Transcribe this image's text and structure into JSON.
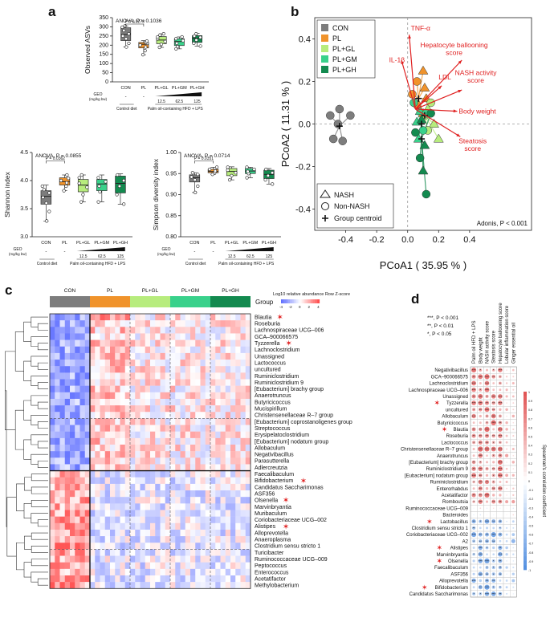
{
  "colors": {
    "CON": "#7d7d7d",
    "PL": "#f0932b",
    "PL+GL": "#b7ec7d",
    "PL+GM": "#39d18b",
    "PL+GH": "#138a4f",
    "red": "#e02020"
  },
  "panel_letters": {
    "a": "a",
    "b": "b",
    "c": "c",
    "d": "d"
  },
  "chart_data": [
    {
      "id": "observed-asvs",
      "type": "box",
      "title": "ANOVA, P = 0.1036",
      "ylabel": "Observed ASVs",
      "ylim": [
        0,
        350
      ],
      "yticks": [
        0,
        50,
        100,
        150,
        200,
        250,
        300,
        350
      ],
      "categories": [
        "CON",
        "PL",
        "PL+GL",
        "PL+GM",
        "PL+GH"
      ],
      "boxes": [
        {
          "min": 190,
          "q1": 225,
          "median": 258,
          "q3": 295,
          "max": 305,
          "points": [
            190,
            210,
            235,
            250,
            262,
            280,
            298,
            305
          ]
        },
        {
          "min": 148,
          "q1": 185,
          "median": 205,
          "q3": 215,
          "max": 225,
          "points": [
            148,
            170,
            190,
            200,
            210,
            215,
            222
          ]
        },
        {
          "min": 188,
          "q1": 208,
          "median": 228,
          "q3": 247,
          "max": 262,
          "points": [
            188,
            205,
            220,
            235,
            245,
            255,
            262
          ]
        },
        {
          "min": 180,
          "q1": 198,
          "median": 220,
          "q3": 235,
          "max": 245,
          "points": [
            180,
            192,
            210,
            225,
            235,
            245
          ]
        },
        {
          "min": 195,
          "q1": 215,
          "median": 238,
          "q3": 252,
          "max": 265,
          "points": [
            195,
            210,
            228,
            242,
            250,
            262
          ]
        }
      ],
      "annotation": {
        "label": "P = 0.0273",
        "from": "CON",
        "to": "PL"
      }
    },
    {
      "id": "shannon-index",
      "type": "box",
      "title": "ANOVA, P = 0.0855",
      "ylabel": "Shannon index",
      "ylim": [
        3.0,
        4.5
      ],
      "yticks": [
        3.0,
        3.5,
        4.0,
        4.5
      ],
      "categories": [
        "CON",
        "PL",
        "PL+GL",
        "PL+GM",
        "PL+GH"
      ],
      "boxes": [
        {
          "min": 3.28,
          "q1": 3.58,
          "median": 3.72,
          "q3": 3.82,
          "max": 3.92,
          "points": [
            3.28,
            3.45,
            3.6,
            3.7,
            3.78,
            3.84,
            3.9
          ]
        },
        {
          "min": 3.82,
          "q1": 3.92,
          "median": 3.98,
          "q3": 4.05,
          "max": 4.1,
          "points": [
            3.82,
            3.9,
            3.96,
            4.0,
            4.04,
            4.1
          ]
        },
        {
          "min": 3.62,
          "q1": 3.8,
          "median": 3.92,
          "q3": 4.02,
          "max": 4.1,
          "points": [
            3.62,
            3.75,
            3.88,
            3.95,
            4.05,
            4.1
          ]
        },
        {
          "min": 3.62,
          "q1": 3.82,
          "median": 3.94,
          "q3": 4.02,
          "max": 4.1,
          "points": [
            3.62,
            3.8,
            3.9,
            3.98,
            4.05
          ]
        },
        {
          "min": 3.58,
          "q1": 3.78,
          "median": 3.95,
          "q3": 4.08,
          "max": 4.12,
          "points": [
            3.58,
            3.75,
            3.9,
            4.0,
            4.1
          ]
        }
      ],
      "annotation": {
        "label": "P = 0.0362",
        "from": "CON",
        "to": "PL"
      }
    },
    {
      "id": "simpson-index",
      "type": "box",
      "title": "ANOVA, P = 0.0714",
      "ylabel": "Simpson diversity index",
      "ylim": [
        0.8,
        1.0
      ],
      "yticks": [
        0.8,
        0.85,
        0.9,
        0.95,
        1.0
      ],
      "categories": [
        "CON",
        "PL",
        "PL+GL",
        "PL+GM",
        "PL+GH"
      ],
      "boxes": [
        {
          "min": 0.905,
          "q1": 0.93,
          "median": 0.94,
          "q3": 0.947,
          "max": 0.952,
          "points": [
            0.905,
            0.92,
            0.935,
            0.942,
            0.948,
            0.952
          ]
        },
        {
          "min": 0.948,
          "q1": 0.952,
          "median": 0.955,
          "q3": 0.96,
          "max": 0.965,
          "points": [
            0.948,
            0.952,
            0.956,
            0.96,
            0.965
          ]
        },
        {
          "min": 0.935,
          "q1": 0.945,
          "median": 0.955,
          "q3": 0.962,
          "max": 0.966,
          "points": [
            0.935,
            0.945,
            0.952,
            0.958,
            0.965
          ]
        },
        {
          "min": 0.94,
          "q1": 0.95,
          "median": 0.956,
          "q3": 0.962,
          "max": 0.965,
          "points": [
            0.94,
            0.95,
            0.955,
            0.96,
            0.965
          ]
        },
        {
          "min": 0.925,
          "q1": 0.938,
          "median": 0.948,
          "q3": 0.958,
          "max": 0.962,
          "points": [
            0.925,
            0.935,
            0.945,
            0.952,
            0.96
          ]
        }
      ],
      "annotation": {
        "label": "P = 0.0351",
        "from": "CON",
        "to": "PL"
      }
    },
    {
      "id": "pcoa",
      "type": "scatter",
      "xlabel": "PCoA1 ( 35.95 % )",
      "ylabel": "PCoA2 ( 11.31 % )",
      "xlim": [
        -0.6,
        0.8
      ],
      "ylim": [
        -0.5,
        0.5
      ],
      "xticks": [
        -0.4,
        -0.2,
        0.0,
        0.2,
        0.4
      ],
      "yticks": [
        -0.4,
        -0.2,
        0.0,
        0.2,
        0.4
      ],
      "legend": [
        "CON",
        "PL",
        "PL+GL",
        "PL+GM",
        "PL+GH"
      ],
      "shape_legend": [
        "NASH",
        "Non-NASH",
        "Group centroid"
      ],
      "stat": "Adonis, P < 0.001",
      "centroids": [
        {
          "group": "CON",
          "x": -0.44,
          "y": -0.01
        },
        {
          "group": "PL",
          "x": 0.07,
          "y": 0.12
        },
        {
          "group": "PL+GL",
          "x": 0.11,
          "y": 0.04
        },
        {
          "group": "PL+GM",
          "x": 0.09,
          "y": 0.0
        },
        {
          "group": "PL+GH",
          "x": 0.09,
          "y": -0.07
        }
      ],
      "points": [
        {
          "group": "CON",
          "x": -0.44,
          "y": 0.07
        },
        {
          "group": "CON",
          "x": -0.5,
          "y": 0.04
        },
        {
          "group": "CON",
          "x": -0.45,
          "y": 0.0
        },
        {
          "group": "CON",
          "x": -0.48,
          "y": -0.07
        },
        {
          "group": "CON",
          "x": -0.42,
          "y": -0.08
        },
        {
          "group": "CON",
          "x": -0.37,
          "y": 0.04
        },
        {
          "group": "PL",
          "x": 0.1,
          "y": 0.25
        },
        {
          "group": "PL",
          "x": 0.06,
          "y": 0.2
        },
        {
          "group": "PL",
          "x": 0.11,
          "y": 0.17
        },
        {
          "group": "PL",
          "x": 0.03,
          "y": 0.14
        },
        {
          "group": "PL",
          "x": 0.12,
          "y": 0.12
        },
        {
          "group": "PL",
          "x": 0.06,
          "y": 0.09
        },
        {
          "group": "PL",
          "x": 0.1,
          "y": 0.05
        },
        {
          "group": "PL+GL",
          "x": 0.15,
          "y": 0.1
        },
        {
          "group": "PL+GL",
          "x": 0.13,
          "y": 0.07
        },
        {
          "group": "PL+GL",
          "x": 0.11,
          "y": 0.04
        },
        {
          "group": "PL+GL",
          "x": 0.17,
          "y": 0.0
        },
        {
          "group": "PL+GL",
          "x": 0.13,
          "y": -0.03
        },
        {
          "group": "PL+GL",
          "x": 0.2,
          "y": -0.07
        },
        {
          "group": "PL+GM",
          "x": 0.04,
          "y": 0.1
        },
        {
          "group": "PL+GM",
          "x": 0.08,
          "y": 0.06
        },
        {
          "group": "PL+GM",
          "x": 0.12,
          "y": 0.05
        },
        {
          "group": "PL+GM",
          "x": 0.06,
          "y": 0.01
        },
        {
          "group": "PL+GM",
          "x": 0.1,
          "y": -0.03
        },
        {
          "group": "PL+GM",
          "x": 0.07,
          "y": -0.07
        },
        {
          "group": "PL+GH",
          "x": 0.15,
          "y": 0.05
        },
        {
          "group": "PL+GH",
          "x": 0.09,
          "y": 0.02
        },
        {
          "group": "PL+GH",
          "x": 0.05,
          "y": -0.04
        },
        {
          "group": "PL+GH",
          "x": 0.11,
          "y": -0.1
        },
        {
          "group": "PL+GH",
          "x": 0.08,
          "y": -0.16
        },
        {
          "group": "PL+GH",
          "x": 0.1,
          "y": -0.22
        },
        {
          "group": "PL+GH",
          "x": 0.12,
          "y": -0.33
        }
      ],
      "vectors": [
        {
          "label": "TNF-α",
          "x": 0.01,
          "y": 0.42
        },
        {
          "label": "IL-1β",
          "x": -0.04,
          "y": 0.3
        },
        {
          "label": "Hepatocyte ballooning score",
          "x": 0.35,
          "y": 0.3
        },
        {
          "label": "LDL",
          "x": 0.22,
          "y": 0.18
        },
        {
          "label": "NASH activity score",
          "x": 0.35,
          "y": 0.16
        },
        {
          "label": "Body weight",
          "x": 0.32,
          "y": 0.06
        },
        {
          "label": "Steatosis score",
          "x": 0.34,
          "y": -0.06
        }
      ]
    },
    {
      "id": "heatmap",
      "type": "heatmap",
      "groups": [
        "CON",
        "PL",
        "PL+GL",
        "PL+GM",
        "PL+GH"
      ],
      "legend_title": "Log10 relative abundance Row Z-score",
      "scale": [
        -4,
        -2,
        0,
        2,
        4
      ],
      "rows": [
        "Blautia",
        "Roseburia",
        "Lachnospiraceae UCG–006",
        "GCA–900066575",
        "Tyzzerella",
        "Lachnoclostridium",
        "Unassigned",
        "Lactococcus",
        "uncultured",
        "Ruminiclostridium",
        "Ruminiclostridium 9",
        "[Eubacterium] brachy group",
        "Anaerotruncus",
        "Butyricicoccus",
        "Mucispirillum",
        "Christensenellaceae R–7 group",
        "[Eubacterium] coprostanoligenes group",
        "Streptococcus",
        "Erysipelatoclostridium",
        "[Eubacterium] nodatum group",
        "Allobaculum",
        "Negativibacillus",
        "Parasutterella",
        "Adlercreutzia",
        "Faecalibaculum",
        "Bifidobacterium",
        "Candidatus Saccharimonas",
        "ASF356",
        "Olsenella",
        "Marvinbryantia",
        "Muribaculum",
        "Coriobacteriaceae UCG–002",
        "Alistipes",
        "Alloprevotella",
        "Anaeroplasma",
        "Clostridium sensu stricto 1",
        "Turicibacter",
        "Ruminococcaceae UCG–009",
        "Peptococcus",
        "Enterococcus",
        "Acetatifactor",
        "Methylobacterium"
      ],
      "starred": [
        "Blautia",
        "Tyzzerella",
        "Bifidobacterium",
        "Olsenella",
        "Alistipes"
      ]
    },
    {
      "id": "correlation",
      "type": "heatmap",
      "columns": [
        "Palm oil HFD + LPS",
        "Body weight",
        "NASH activity score",
        "Steatosis score",
        "Hepatocyte ballooning score",
        "Lobular inflammation score",
        "Ginger essential oil"
      ],
      "rows": [
        "Negativibacillus",
        "GCA–900066575",
        "Lachnoclostridium",
        "Lachnospiraceae UCG–006",
        "Unassigned",
        "Tyzzerella",
        "uncultured",
        "Allobaculum",
        "Butyricicoccus",
        "Blautia",
        "Roseburia",
        "Lactococcus",
        "Christensenellaceae R–7 group",
        "Anaerotruncus",
        "[Eubacterium] brachy group",
        "Ruminiclostridium 9",
        "[Eubacterium] nodatum group",
        "Ruminiclostridium",
        "Enterorhabdus",
        "Acetatifactor",
        "Romboutsia",
        "Ruminococcaceae UCG–009",
        "Bacteroides",
        "Lactobacillus",
        "Clostridium sensu stricto 1",
        "Coriobacteriaceae UCG–002",
        "A2",
        "Alistipes",
        "Marvinbryantia",
        "Olsenella",
        "Faecalibaculum",
        "ASF356",
        "Alloprevotella",
        "Bifidobacterium",
        "Candidatus Saccharimonas"
      ],
      "starred": [
        "Tyzzerella",
        "Blautia",
        "Lactobacillus",
        "Alistipes",
        "Olsenella",
        "Bifidobacterium"
      ],
      "sig_legend": [
        "***, P < 0.001",
        "**, P < 0.01",
        "*, P < 0.05"
      ],
      "colorbar_label": "Spearman's correlation coefficient",
      "colorbar_ticks": [
        "1",
        "0.9",
        "0.8",
        "0.7",
        "0.6",
        "0.5",
        "0.4",
        "0.3",
        "0.2",
        "0.1",
        "0",
        "-0.1",
        "-0.2",
        "-0.3",
        "-0.4",
        "-0.5",
        "-0.6",
        "-0.7",
        "-0.8",
        "-0.9",
        "-1"
      ]
    }
  ],
  "labels": {
    "a_xaxis_geo": "GEO",
    "a_xaxis_units": "(mg/kg bw)",
    "a_dose_dash": "-",
    "a_doses": [
      "12.5",
      "62.5",
      "125"
    ],
    "a_control_diet": "Control diet",
    "a_palm_oil": "Palm oil-containing HFD + LPS",
    "c_group_label": "Group"
  }
}
